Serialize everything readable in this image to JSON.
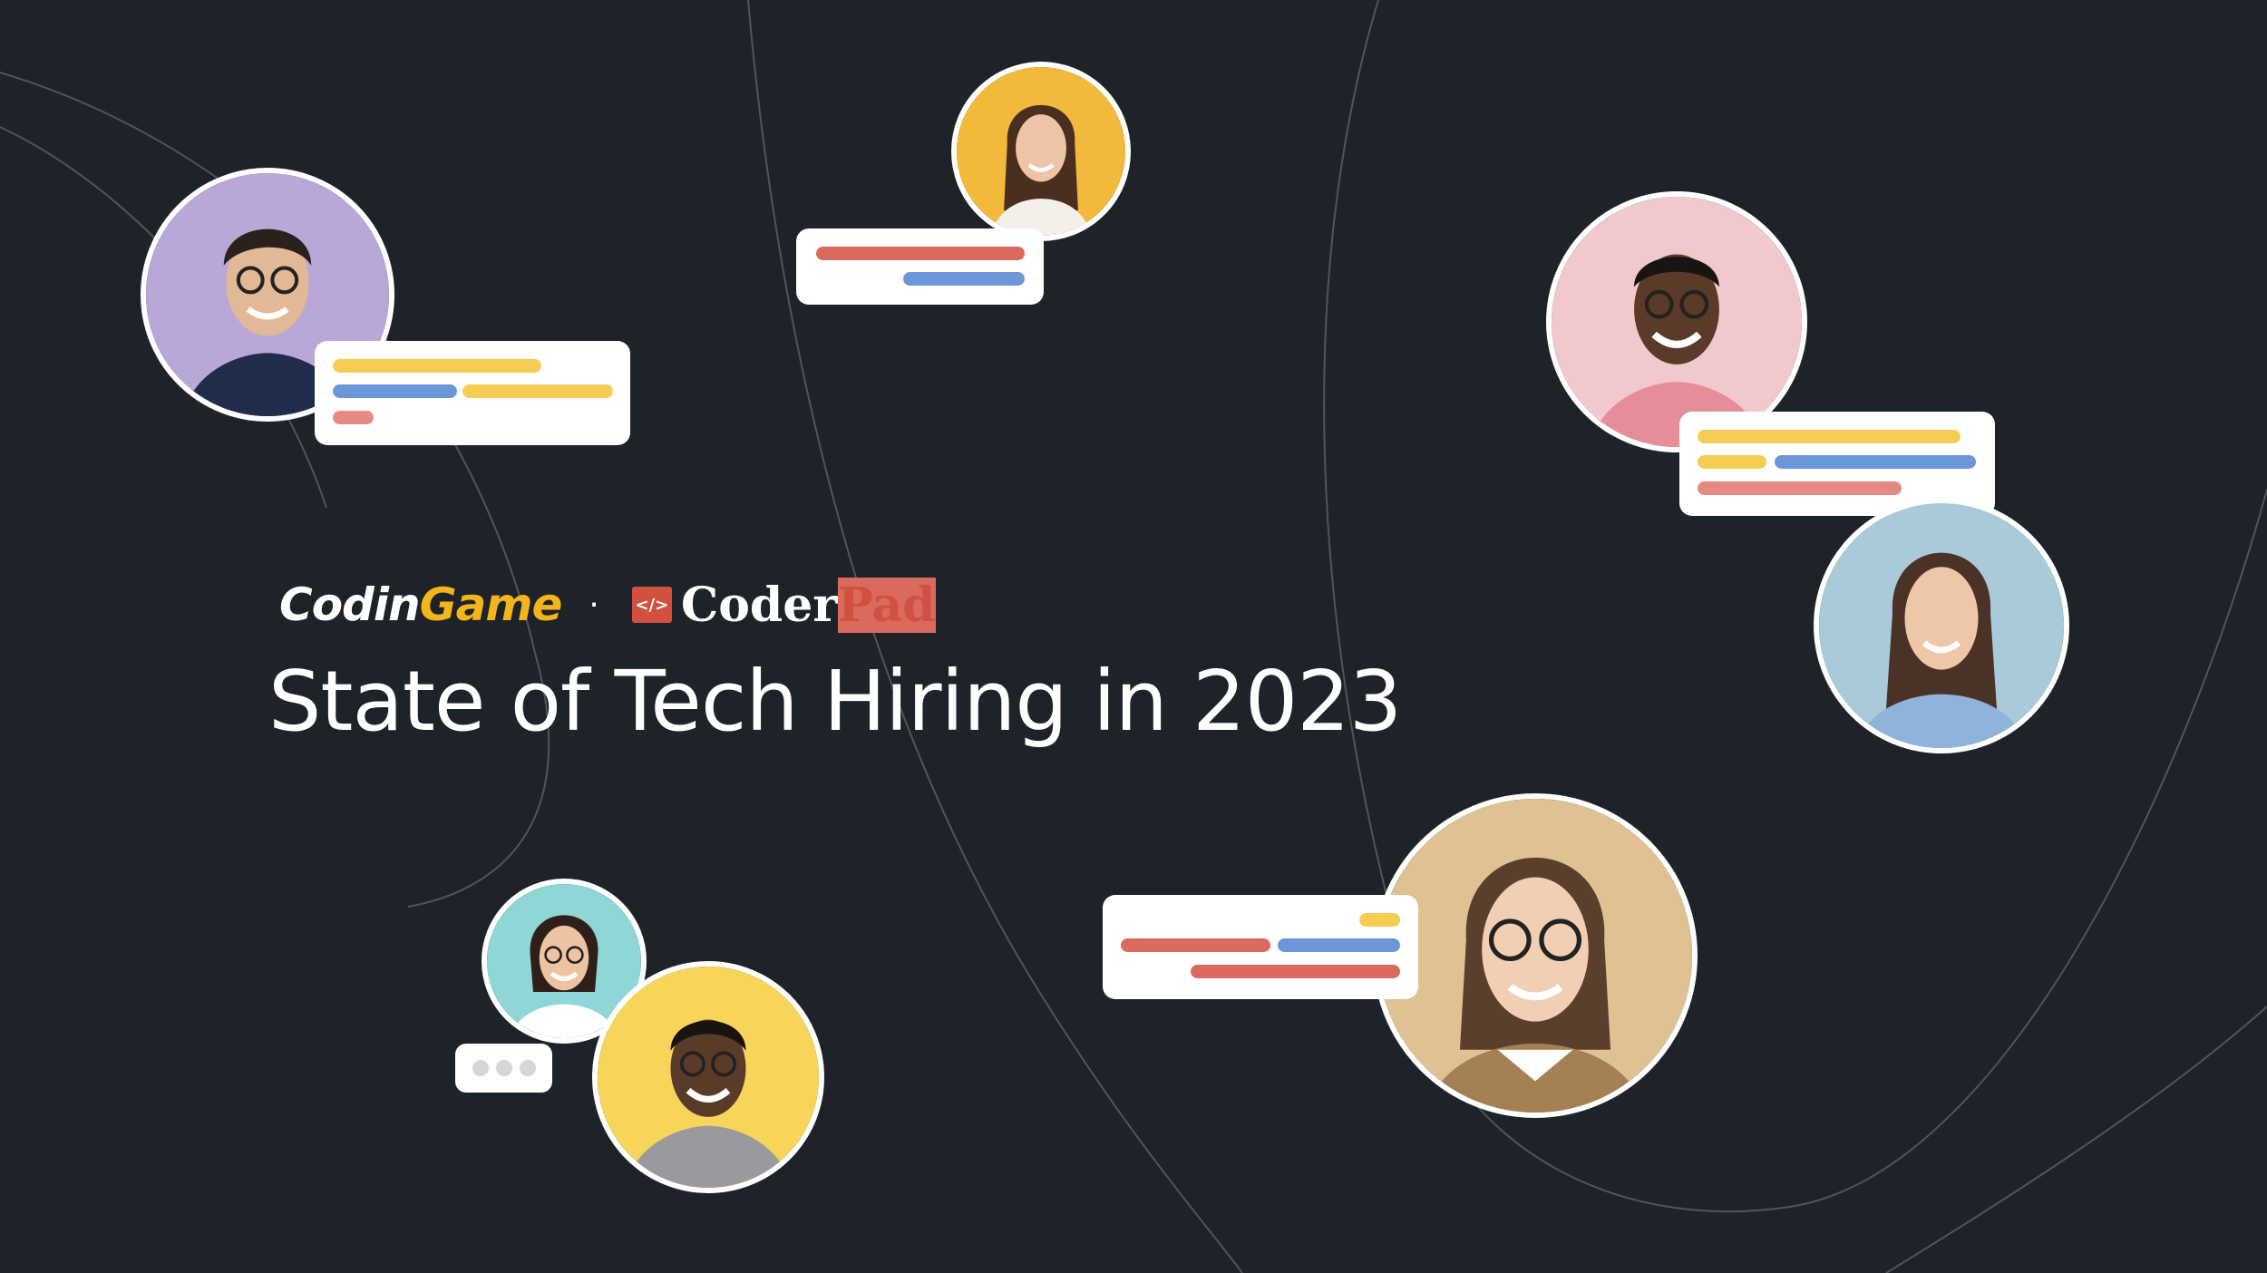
{
  "brand": {
    "codingame_part1": "Codin",
    "codingame_part2": "Game",
    "separator": "·",
    "coderpad_icon": "</>",
    "coderpad_part1": "Coder",
    "coderpad_part2": "Pad"
  },
  "title": "State of Tech Hiring in 2023",
  "colors": {
    "background": "#1e232a",
    "yellow": "#f5cd54",
    "blue": "#6b97d8",
    "red": "#db6a5e",
    "brand_red": "#d2503f",
    "brand_yellow": "#f3b41c"
  },
  "avatars": [
    {
      "name": "man-glasses-purple",
      "bg": "#b9a7d8",
      "skin": "#e2b896",
      "hair": "#2b211c"
    },
    {
      "name": "woman-yellow",
      "bg": "#f2b93a",
      "skin": "#edc4a5",
      "hair": "#4a2e20"
    },
    {
      "name": "man-pink",
      "bg": "#f1c9cc",
      "skin": "#5b3a2a",
      "hair": "#1a1410"
    },
    {
      "name": "woman-lightblue",
      "bg": "#a9cbd9",
      "skin": "#eec6a8",
      "hair": "#4a3326"
    },
    {
      "name": "woman-glasses-tan",
      "bg": "#e0c193",
      "skin": "#f0cfb4",
      "hair": "#5a3f2c"
    },
    {
      "name": "woman-teal",
      "bg": "#8fd6d6",
      "skin": "#eec3a2",
      "hair": "#2e2019"
    },
    {
      "name": "man-yellow",
      "bg": "#f7d55a",
      "skin": "#5a3a28",
      "hair": "#1a1410"
    }
  ]
}
